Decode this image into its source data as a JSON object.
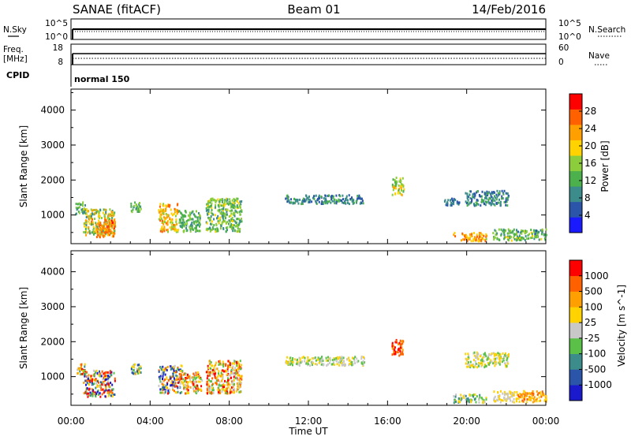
{
  "header": {
    "station": "SANAE (fitACF)",
    "beam": "Beam 01",
    "date": "14/Feb/2016"
  },
  "top_panels": {
    "nsky": {
      "label": "N.Sky",
      "ticks": [
        "10^5",
        "10^0"
      ]
    },
    "nsearch": {
      "label": "N.Search",
      "ticks": [
        "10^5",
        "10^0"
      ]
    },
    "freq": {
      "label_line1": "Freq.",
      "label_line2": "[MHz]",
      "ticks": [
        "18",
        "8"
      ]
    },
    "nave": {
      "label": "Nave",
      "ticks": [
        "60",
        "0"
      ]
    },
    "cpid": {
      "label": "CPID",
      "value": "normal 150"
    }
  },
  "x_axis": {
    "label": "Time UT",
    "ticks": [
      "00:00",
      "04:00",
      "08:00",
      "12:00",
      "16:00",
      "20:00",
      "00:00"
    ]
  },
  "power_colorbar": {
    "label": "Power [dB]",
    "ticks": [
      "4",
      "8",
      "12",
      "16",
      "20",
      "24",
      "28"
    ],
    "colors": [
      "#1a1aff",
      "#2a55a8",
      "#3c8c8c",
      "#4cb04c",
      "#8ccd3c",
      "#ffd200",
      "#ffa000",
      "#ff6000",
      "#ff0000"
    ]
  },
  "velocity_colorbar": {
    "label": "Velocity [m s^-1]",
    "ticks": [
      "1000",
      "500",
      "100",
      "25",
      "-25",
      "-100",
      "-500",
      "-1000"
    ],
    "colors": [
      "#1a1acc",
      "#2a55a8",
      "#3c8c8c",
      "#5ac048",
      "#c8c8c8",
      "#ffd200",
      "#ffa000",
      "#ff6000",
      "#ff0000"
    ]
  },
  "chart_data": [
    {
      "type": "heatmap",
      "title": "Power",
      "xlabel": "",
      "ylabel": "Slant Range [km]",
      "xlim": [
        0,
        24
      ],
      "ylim": [
        180,
        4600
      ],
      "yticks": [
        1000,
        2000,
        3000,
        4000
      ],
      "colorbar": {
        "label": "Power [dB]",
        "range": [
          0,
          30
        ]
      },
      "clusters": [
        {
          "t": [
            0.2,
            0.7
          ],
          "r": [
            1050,
            1400
          ],
          "c": [
            8,
            16
          ]
        },
        {
          "t": [
            0.6,
            2.2
          ],
          "r": [
            450,
            1200
          ],
          "c": [
            8,
            24
          ]
        },
        {
          "t": [
            1.2,
            2.2
          ],
          "r": [
            400,
            900
          ],
          "c": [
            18,
            28
          ]
        },
        {
          "t": [
            3.0,
            3.5
          ],
          "r": [
            1100,
            1400
          ],
          "c": [
            8,
            16
          ]
        },
        {
          "t": [
            4.4,
            5.4
          ],
          "r": [
            550,
            1350
          ],
          "c": [
            14,
            26
          ]
        },
        {
          "t": [
            5.4,
            6.5
          ],
          "r": [
            550,
            1150
          ],
          "c": [
            8,
            16
          ]
        },
        {
          "t": [
            6.8,
            8.6
          ],
          "r": [
            550,
            1500
          ],
          "c": [
            8,
            18
          ]
        },
        {
          "t": [
            10.8,
            14.8
          ],
          "r": [
            1350,
            1600
          ],
          "c": [
            4,
            12
          ]
        },
        {
          "t": [
            16.2,
            16.8
          ],
          "r": [
            1600,
            2100
          ],
          "c": [
            12,
            22
          ]
        },
        {
          "t": [
            18.8,
            19.6
          ],
          "r": [
            1300,
            1500
          ],
          "c": [
            4,
            10
          ]
        },
        {
          "t": [
            19.9,
            22.1
          ],
          "r": [
            1300,
            1720
          ],
          "c": [
            4,
            12
          ]
        },
        {
          "t": [
            19.3,
            21.0
          ],
          "r": [
            280,
            520
          ],
          "c": [
            16,
            26
          ]
        },
        {
          "t": [
            21.3,
            24.0
          ],
          "r": [
            300,
            620
          ],
          "c": [
            6,
            18
          ]
        }
      ]
    },
    {
      "type": "heatmap",
      "title": "Velocity",
      "xlabel": "Time UT",
      "ylabel": "Slant Range [km]",
      "xlim": [
        0,
        24
      ],
      "ylim": [
        180,
        4600
      ],
      "yticks": [
        1000,
        2000,
        3000,
        4000
      ],
      "colorbar": {
        "label": "Velocity [m s^-1]",
        "range": [
          -1000,
          1000
        ]
      },
      "clusters": [
        {
          "t": [
            0.2,
            0.7
          ],
          "r": [
            1050,
            1400
          ],
          "c": [
            1,
            8
          ]
        },
        {
          "t": [
            0.6,
            2.2
          ],
          "r": [
            450,
            1200
          ],
          "c": [
            0,
            8
          ]
        },
        {
          "t": [
            3.0,
            3.5
          ],
          "r": [
            1100,
            1400
          ],
          "c": [
            1,
            6
          ]
        },
        {
          "t": [
            4.4,
            5.6
          ],
          "r": [
            550,
            1350
          ],
          "c": [
            0,
            8
          ]
        },
        {
          "t": [
            5.6,
            6.6
          ],
          "r": [
            550,
            1150
          ],
          "c": [
            3,
            8
          ]
        },
        {
          "t": [
            6.8,
            8.6
          ],
          "r": [
            550,
            1500
          ],
          "c": [
            3,
            8
          ]
        },
        {
          "t": [
            10.8,
            14.8
          ],
          "r": [
            1350,
            1600
          ],
          "c": [
            3,
            5
          ]
        },
        {
          "t": [
            16.2,
            16.8
          ],
          "r": [
            1600,
            2100
          ],
          "c": [
            6,
            8
          ]
        },
        {
          "t": [
            19.9,
            22.1
          ],
          "r": [
            1300,
            1720
          ],
          "c": [
            3,
            5
          ]
        },
        {
          "t": [
            19.3,
            21.0
          ],
          "r": [
            280,
            520
          ],
          "c": [
            2,
            5
          ]
        },
        {
          "t": [
            21.3,
            22.5
          ],
          "r": [
            300,
            620
          ],
          "c": [
            4,
            5
          ]
        },
        {
          "t": [
            22.5,
            24.0
          ],
          "r": [
            300,
            620
          ],
          "c": [
            5,
            7
          ]
        }
      ]
    }
  ]
}
